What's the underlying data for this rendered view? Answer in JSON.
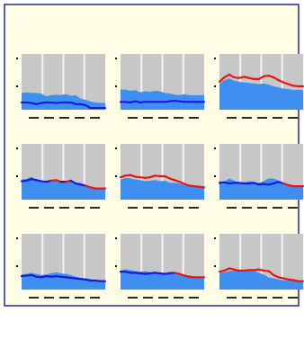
{
  "figure": {
    "title": "",
    "subtitle": "",
    "colors": {
      "frame_border": "#1f2b8c",
      "frame_background": "#fffde6",
      "panel_background": "#c7c7c7",
      "gridline": "#f2f2f2",
      "area_fill": "#3f8ff0",
      "series_red": "#ee1111",
      "series_blue": "#1a1adf"
    }
  },
  "chart_data": [
    {
      "type": "area",
      "title": "",
      "xlabel": "",
      "ylabel": "",
      "x": [
        1,
        2,
        3,
        4,
        5,
        6,
        7,
        8,
        9,
        10,
        11,
        12,
        13,
        14,
        15,
        16,
        17,
        18
      ],
      "ylim": [
        0,
        10
      ],
      "grid": true,
      "legend": "none",
      "series": [
        {
          "kind": "area",
          "values": [
            3.0,
            3.1,
            3.0,
            3.0,
            2.9,
            2.4,
            2.6,
            2.7,
            2.6,
            2.8,
            2.5,
            2.6,
            2.0,
            1.8,
            1.5,
            1.3,
            1.2,
            1.2
          ]
        },
        {
          "kind": "line",
          "values": [
            1.3,
            1.3,
            1.2,
            1.0,
            1.2,
            1.3,
            1.3,
            1.2,
            1.3,
            1.3,
            1.3,
            1.0,
            1.0,
            0.8,
            0.3,
            0.3,
            0.3,
            0.3
          ]
        }
      ]
    },
    {
      "type": "area",
      "title": "",
      "xlabel": "",
      "ylabel": "",
      "x": [
        1,
        2,
        3,
        4,
        5,
        6,
        7,
        8,
        9,
        10,
        11,
        12,
        13,
        14,
        15,
        16,
        17,
        18
      ],
      "ylim": [
        0,
        10
      ],
      "grid": true,
      "legend": "none",
      "series": [
        {
          "kind": "area",
          "values": [
            3.6,
            3.6,
            3.4,
            3.5,
            3.1,
            3.3,
            3.2,
            3.4,
            3.3,
            3.0,
            2.9,
            2.7,
            2.6,
            2.8,
            2.6,
            2.6,
            2.6,
            2.6
          ]
        },
        {
          "kind": "line",
          "values": [
            1.4,
            1.4,
            1.3,
            1.5,
            1.3,
            1.4,
            1.4,
            1.4,
            1.4,
            1.4,
            1.5,
            1.6,
            1.5,
            1.4,
            1.4,
            1.4,
            1.4,
            1.4
          ]
        }
      ]
    },
    {
      "type": "area",
      "title": "",
      "xlabel": "",
      "ylabel": "",
      "x": [
        1,
        2,
        3,
        4,
        5,
        6,
        7,
        8,
        9,
        10,
        11,
        12,
        13,
        14,
        15,
        16,
        17,
        18
      ],
      "ylim": [
        0,
        10
      ],
      "grid": true,
      "legend": "none",
      "series": [
        {
          "kind": "area",
          "values": [
            4.6,
            5.3,
            5.6,
            5.2,
            5.0,
            4.9,
            4.8,
            4.7,
            4.6,
            4.7,
            4.5,
            4.2,
            4.0,
            3.8,
            3.7,
            3.5,
            3.6,
            3.5
          ]
        },
        {
          "kind": "line",
          "values": [
            5.0,
            5.8,
            6.3,
            5.8,
            5.7,
            5.9,
            5.7,
            5.5,
            5.5,
            6.0,
            6.1,
            5.8,
            5.3,
            4.9,
            4.6,
            4.3,
            4.2,
            4.2
          ]
        }
      ]
    },
    {
      "type": "area",
      "title": "",
      "xlabel": "",
      "ylabel": "",
      "x": [
        1,
        2,
        3,
        4,
        5,
        6,
        7,
        8,
        9,
        10,
        11,
        12,
        13,
        14,
        15,
        16,
        17,
        18
      ],
      "ylim": [
        0,
        10
      ],
      "grid": true,
      "legend": "none",
      "series": [
        {
          "kind": "area",
          "values": [
            3.6,
            3.7,
            4.1,
            3.6,
            3.3,
            3.4,
            3.4,
            3.3,
            3.3,
            3.2,
            3.4,
            3.0,
            3.0,
            2.5,
            2.0,
            2.0,
            1.9,
            1.9
          ]
        },
        {
          "kind": "line",
          "values": [
            3.3,
            3.4,
            3.7,
            3.5,
            3.3,
            3.2,
            3.4,
            3.5,
            3.2,
            3.2,
            3.4,
            2.9,
            2.7,
            2.5,
            2.2,
            2.0,
            2.0,
            2.0
          ]
        }
      ]
    },
    {
      "type": "area",
      "title": "",
      "xlabel": "",
      "ylabel": "",
      "x": [
        1,
        2,
        3,
        4,
        5,
        6,
        7,
        8,
        9,
        10,
        11,
        12,
        13,
        14,
        15,
        16,
        17,
        18
      ],
      "ylim": [
        0,
        10
      ],
      "grid": true,
      "legend": "none",
      "series": [
        {
          "kind": "area",
          "values": [
            3.6,
            3.9,
            3.8,
            3.6,
            3.5,
            3.3,
            3.4,
            3.5,
            3.3,
            3.4,
            3.0,
            3.0,
            2.9,
            2.6,
            2.4,
            2.4,
            2.3,
            2.2
          ]
        },
        {
          "kind": "line",
          "values": [
            4.0,
            4.3,
            4.4,
            4.1,
            4.0,
            3.9,
            4.0,
            4.3,
            4.2,
            4.2,
            3.8,
            3.5,
            3.2,
            2.8,
            2.5,
            2.4,
            2.3,
            2.2
          ]
        }
      ]
    },
    {
      "type": "area",
      "title": "",
      "xlabel": "",
      "ylabel": "",
      "x": [
        1,
        2,
        3,
        4,
        5,
        6,
        7,
        8,
        9,
        10,
        11,
        12,
        13,
        14,
        15,
        16,
        17,
        18
      ],
      "ylim": [
        0,
        10
      ],
      "grid": true,
      "legend": "none",
      "series": [
        {
          "kind": "area",
          "values": [
            3.3,
            3.2,
            3.8,
            3.4,
            3.0,
            3.0,
            3.3,
            3.2,
            3.0,
            3.3,
            3.8,
            3.8,
            3.4,
            2.9,
            2.5,
            2.4,
            2.4,
            2.4
          ]
        },
        {
          "kind": "line",
          "values": [
            3.0,
            3.1,
            2.9,
            3.0,
            3.0,
            2.9,
            2.9,
            3.0,
            2.7,
            2.8,
            2.7,
            2.9,
            3.2,
            2.9,
            2.6,
            2.4,
            2.4,
            2.4
          ]
        }
      ]
    },
    {
      "type": "area",
      "title": "",
      "xlabel": "",
      "ylabel": "",
      "x": [
        1,
        2,
        3,
        4,
        5,
        6,
        7,
        8,
        9,
        10,
        11,
        12,
        13,
        14,
        15,
        16,
        17,
        18
      ],
      "ylim": [
        0,
        10
      ],
      "grid": true,
      "legend": "none",
      "series": [
        {
          "kind": "area",
          "values": [
            2.7,
            2.8,
            3.0,
            2.8,
            2.6,
            2.7,
            2.9,
            3.1,
            2.9,
            2.8,
            2.6,
            2.3,
            2.1,
            2.0,
            1.9,
            1.8,
            1.7,
            1.7
          ]
        },
        {
          "kind": "line",
          "values": [
            2.4,
            2.5,
            2.6,
            2.3,
            2.2,
            2.4,
            2.3,
            2.4,
            2.3,
            2.2,
            2.1,
            2.0,
            1.9,
            1.8,
            1.6,
            1.6,
            1.5,
            1.5
          ]
        }
      ]
    },
    {
      "type": "area",
      "title": "",
      "xlabel": "",
      "ylabel": "",
      "x": [
        1,
        2,
        3,
        4,
        5,
        6,
        7,
        8,
        9,
        10,
        11,
        12,
        13,
        14,
        15,
        16,
        17,
        18
      ],
      "ylim": [
        0,
        10
      ],
      "grid": true,
      "legend": "none",
      "series": [
        {
          "kind": "area",
          "values": [
            3.4,
            3.6,
            3.5,
            3.3,
            3.2,
            3.3,
            3.1,
            3.2,
            3.0,
            2.9,
            3.2,
            3.0,
            2.8,
            2.4,
            2.3,
            2.1,
            2.0,
            2.0
          ]
        },
        {
          "kind": "line",
          "values": [
            3.2,
            3.2,
            3.0,
            3.0,
            2.9,
            2.8,
            2.9,
            3.0,
            2.9,
            2.8,
            2.9,
            3.0,
            2.8,
            2.5,
            2.3,
            2.2,
            2.2,
            2.2
          ]
        }
      ]
    },
    {
      "type": "area",
      "title": "",
      "xlabel": "",
      "ylabel": "",
      "x": [
        1,
        2,
        3,
        4,
        5,
        6,
        7,
        8,
        9,
        10,
        11,
        12,
        13,
        14,
        15,
        16,
        17,
        18
      ],
      "ylim": [
        0,
        10
      ],
      "grid": true,
      "legend": "none",
      "series": [
        {
          "kind": "area",
          "values": [
            3.0,
            3.1,
            3.3,
            3.4,
            3.4,
            3.2,
            3.6,
            3.4,
            3.0,
            2.7,
            2.2,
            2.0,
            1.8,
            1.7,
            1.6,
            1.6,
            1.5,
            1.5
          ]
        },
        {
          "kind": "line",
          "values": [
            3.2,
            3.4,
            3.8,
            3.6,
            3.4,
            3.4,
            3.5,
            3.5,
            3.6,
            3.4,
            3.3,
            2.6,
            2.2,
            2.0,
            1.8,
            1.7,
            1.5,
            1.5
          ]
        }
      ]
    }
  ]
}
